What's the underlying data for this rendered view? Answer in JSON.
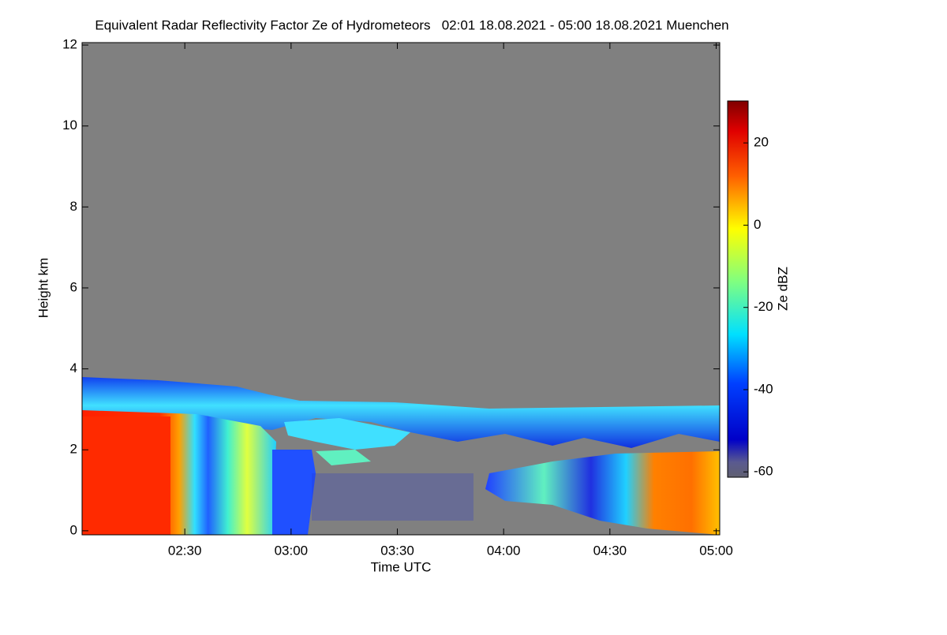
{
  "chart_data": {
    "type": "heatmap",
    "title": "Equivalent Radar Reflectivity Factor Ze of Hydrometeors   02:01 18.08.2021 - 05:00 18.08.2021 Muenchen",
    "xlabel": "Time UTC",
    "ylabel": "Height km",
    "xlim": [
      121,
      301
    ],
    "ylim": [
      -0.1,
      12.06
    ],
    "xticks": [
      {
        "value": 150,
        "label": "02:30"
      },
      {
        "value": 180,
        "label": "03:00"
      },
      {
        "value": 210,
        "label": "03:30"
      },
      {
        "value": 240,
        "label": "04:00"
      },
      {
        "value": 270,
        "label": "04:30"
      },
      {
        "value": 300,
        "label": "05:00"
      }
    ],
    "yticks": [
      0,
      2,
      4,
      6,
      8,
      10,
      12
    ],
    "colorbar": {
      "label": "Ze dBZ",
      "lim": [
        -61.3,
        30.2
      ],
      "ticks": [
        20,
        0,
        -20,
        -40,
        -60
      ]
    }
  }
}
